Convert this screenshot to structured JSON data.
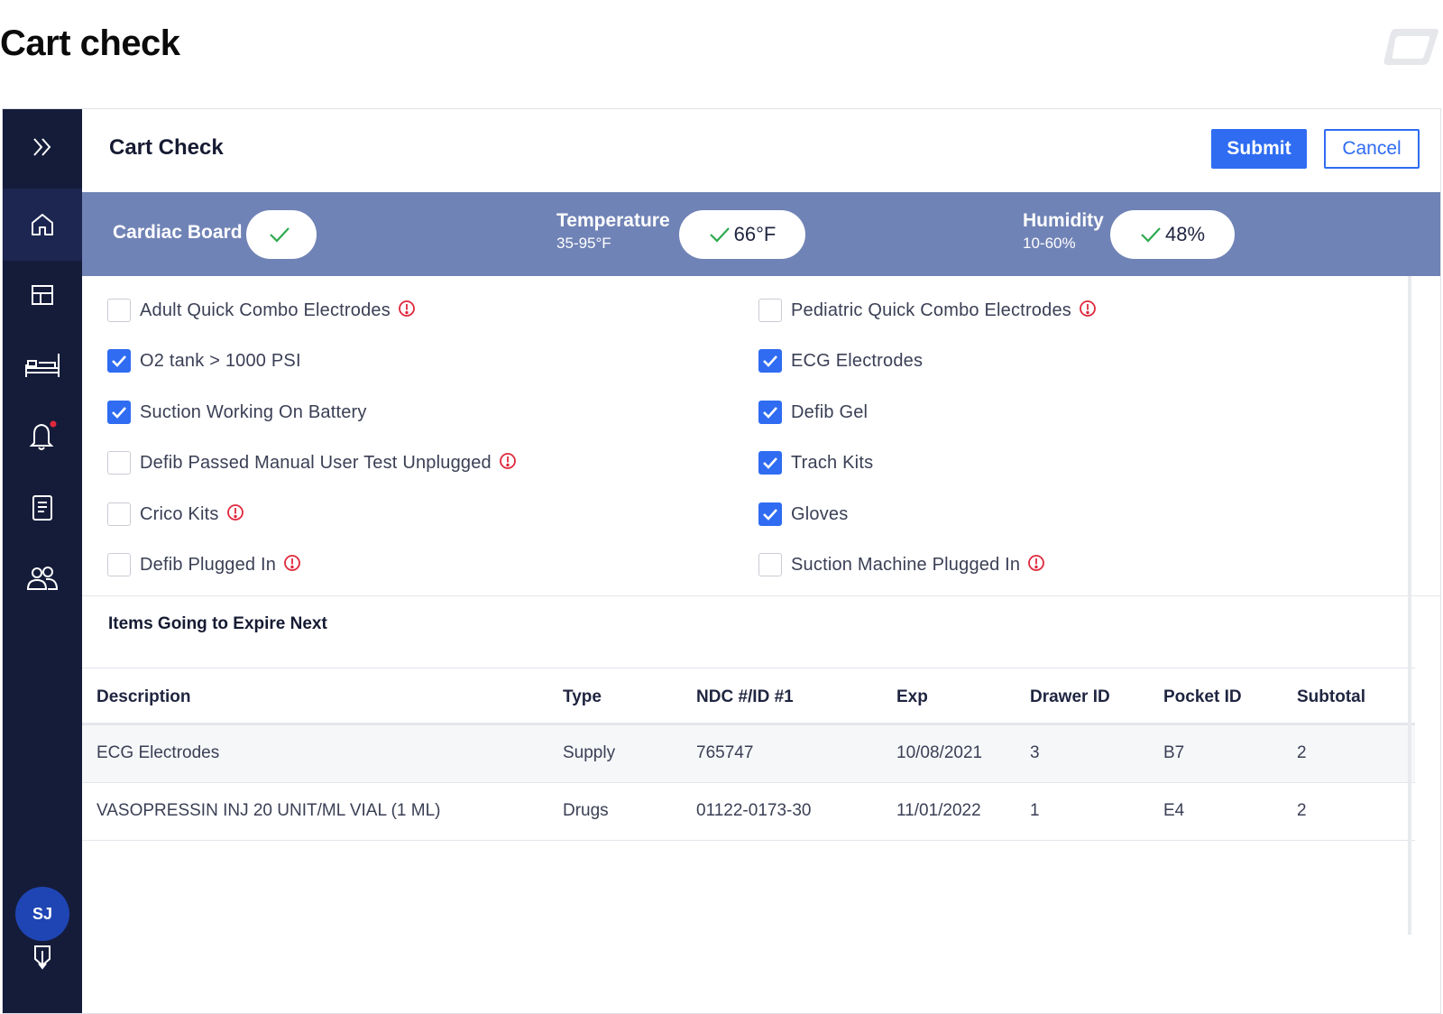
{
  "page_heading": "Cart check",
  "brand": {
    "logo_icon": "rounded-parallelogram-logo",
    "color": "#e6e7ea"
  },
  "sidebar": {
    "background": "#151c3a",
    "items": [
      {
        "name": "expand",
        "icon": "double-chevron-right-icon"
      },
      {
        "name": "home",
        "icon": "home-icon",
        "active": true
      },
      {
        "name": "dashboard",
        "icon": "layout-icon"
      },
      {
        "name": "beds",
        "icon": "bed-icon"
      },
      {
        "name": "alerts",
        "icon": "bell-icon",
        "has_badge": true
      },
      {
        "name": "reports",
        "icon": "document-icon"
      },
      {
        "name": "users",
        "icon": "users-icon"
      }
    ],
    "avatar_initials": "SJ",
    "logout_icon": "logout-icon"
  },
  "header": {
    "title": "Cart Check",
    "submit_label": "Submit",
    "cancel_label": "Cancel",
    "accent": "#2f6cf2"
  },
  "status": {
    "cardiac": {
      "label": "Cardiac Board",
      "value": ""
    },
    "temperature": {
      "label": "Temperature",
      "range": "35-95°F",
      "value": "66°F"
    },
    "humidity": {
      "label": "Humidity",
      "range": "10-60%",
      "value": "48%"
    },
    "ok_color": "#2eaa4f"
  },
  "checklist": {
    "left": [
      {
        "label": "Adult Quick Combo Electrodes",
        "checked": false,
        "warning": true
      },
      {
        "label": "O2 tank > 1000 PSI",
        "checked": true,
        "warning": false
      },
      {
        "label": "Suction Working On Battery",
        "checked": true,
        "warning": false
      },
      {
        "label": "Defib Passed Manual User Test Unplugged",
        "checked": false,
        "warning": true
      },
      {
        "label": "Crico Kits",
        "checked": false,
        "warning": true
      },
      {
        "label": "Defib Plugged In",
        "checked": false,
        "warning": true
      }
    ],
    "right": [
      {
        "label": "Pediatric Quick Combo Electrodes",
        "checked": false,
        "warning": true
      },
      {
        "label": "ECG Electrodes",
        "checked": true,
        "warning": false
      },
      {
        "label": "Defib Gel",
        "checked": true,
        "warning": false
      },
      {
        "label": "Trach Kits",
        "checked": true,
        "warning": false
      },
      {
        "label": "Gloves",
        "checked": true,
        "warning": false
      },
      {
        "label": "Suction Machine Plugged In",
        "checked": false,
        "warning": true
      }
    ],
    "warning_color": "#e0283c"
  },
  "expiring": {
    "title": "Items Going to Expire Next",
    "columns": [
      "Description",
      "Type",
      "NDC #/ID #1",
      "Exp",
      "Drawer ID",
      "Pocket ID",
      "Subtotal"
    ],
    "rows": [
      [
        "ECG Electrodes",
        "Supply",
        "765747",
        "10/08/2021",
        "3",
        "B7",
        "2"
      ],
      [
        "VASOPRESSIN INJ 20 UNIT/ML VIAL (1 ML)",
        "Drugs",
        "01122-0173-30",
        "11/01/2022",
        "1",
        "E4",
        "2"
      ]
    ]
  }
}
